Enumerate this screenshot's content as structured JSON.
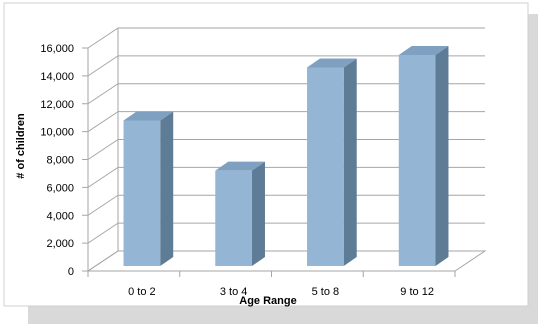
{
  "chart_data": {
    "type": "bar",
    "categories": [
      "0 to 2",
      "3 to 4",
      "5 to 8",
      "9 to 12"
    ],
    "values": [
      10800,
      7200,
      14600,
      15500
    ],
    "xlabel": "Age Range",
    "ylabel": "# of children",
    "ylim": [
      0,
      16000
    ],
    "yticks": [
      "0",
      "2,000",
      "4,000",
      "6,000",
      "8,000",
      "10,000",
      "12,000",
      "14,000",
      "16,000"
    ],
    "grid": true,
    "legend": "none",
    "colors": {
      "bar_front": "#95b5d4",
      "bar_side": "#5f7c96",
      "bar_top": "#7fa0c0",
      "grid": "#a6a6a6",
      "panel_shadow": "#d9d9d9"
    }
  }
}
